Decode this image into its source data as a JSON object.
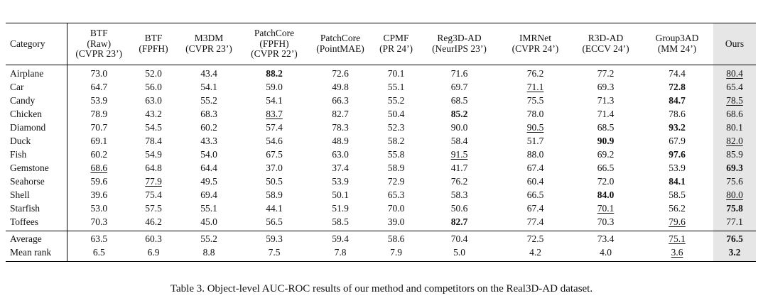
{
  "header": {
    "category": "Category",
    "columns": [
      {
        "lines": [
          "BTF",
          "(Raw)",
          "(CVPR 23’)"
        ]
      },
      {
        "lines": [
          "BTF",
          "(FPFH)"
        ]
      },
      {
        "lines": [
          "M3DM",
          "(CVPR 23’)"
        ]
      },
      {
        "lines": [
          "PatchCore",
          "(FPFH)",
          "(CVPR 22’)"
        ]
      },
      {
        "lines": [
          "PatchCore",
          "(PointMAE)"
        ]
      },
      {
        "lines": [
          "CPMF",
          "(PR 24’)"
        ]
      },
      {
        "lines": [
          "Reg3D-AD",
          "(NeurIPS 23’)"
        ]
      },
      {
        "lines": [
          "IMRNet",
          "(CVPR 24’)"
        ]
      },
      {
        "lines": [
          "R3D-AD",
          "(ECCV 24’)"
        ]
      },
      {
        "lines": [
          "Group3AD",
          "(MM 24’)"
        ]
      },
      {
        "lines": [
          "Ours"
        ]
      }
    ]
  },
  "rows": [
    {
      "category": "Airplane",
      "values": [
        "73.0",
        "52.0",
        "43.4",
        "88.2",
        "72.6",
        "70.1",
        "71.6",
        "76.2",
        "77.2",
        "74.4",
        "80.4"
      ],
      "bold": [
        3
      ],
      "underline": [
        10
      ]
    },
    {
      "category": "Car",
      "values": [
        "64.7",
        "56.0",
        "54.1",
        "59.0",
        "49.8",
        "55.1",
        "69.7",
        "71.1",
        "69.3",
        "72.8",
        "65.4"
      ],
      "bold": [
        9
      ],
      "underline": [
        7
      ]
    },
    {
      "category": "Candy",
      "values": [
        "53.9",
        "63.0",
        "55.2",
        "54.1",
        "66.3",
        "55.2",
        "68.5",
        "75.5",
        "71.3",
        "84.7",
        "78.5"
      ],
      "bold": [
        9
      ],
      "underline": [
        10
      ]
    },
    {
      "category": "Chicken",
      "values": [
        "78.9",
        "43.2",
        "68.3",
        "83.7",
        "82.7",
        "50.4",
        "85.2",
        "78.0",
        "71.4",
        "78.6",
        "68.6"
      ],
      "bold": [
        6
      ],
      "underline": [
        3
      ]
    },
    {
      "category": "Diamond",
      "values": [
        "70.7",
        "54.5",
        "60.2",
        "57.4",
        "78.3",
        "52.3",
        "90.0",
        "90.5",
        "68.5",
        "93.2",
        "80.1"
      ],
      "bold": [
        9
      ],
      "underline": [
        7
      ]
    },
    {
      "category": "Duck",
      "values": [
        "69.1",
        "78.4",
        "43.3",
        "54.6",
        "48.9",
        "58.2",
        "58.4",
        "51.7",
        "90.9",
        "67.9",
        "82.0"
      ],
      "bold": [
        8
      ],
      "underline": [
        10
      ]
    },
    {
      "category": "Fish",
      "values": [
        "60.2",
        "54.9",
        "54.0",
        "67.5",
        "63.0",
        "55.8",
        "91.5",
        "88.0",
        "69.2",
        "97.6",
        "85.9"
      ],
      "bold": [
        9
      ],
      "underline": [
        6
      ]
    },
    {
      "category": "Gemstone",
      "values": [
        "68.6",
        "64.8",
        "64.4",
        "37.0",
        "37.4",
        "58.9",
        "41.7",
        "67.4",
        "66.5",
        "53.9",
        "69.3"
      ],
      "bold": [
        10
      ],
      "underline": [
        0
      ]
    },
    {
      "category": "Seahorse",
      "values": [
        "59.6",
        "77.9",
        "49.5",
        "50.5",
        "53.9",
        "72.9",
        "76.2",
        "60.4",
        "72.0",
        "84.1",
        "75.6"
      ],
      "bold": [
        9
      ],
      "underline": [
        1
      ]
    },
    {
      "category": "Shell",
      "values": [
        "39.6",
        "75.4",
        "69.4",
        "58.9",
        "50.1",
        "65.3",
        "58.3",
        "66.5",
        "84.0",
        "58.5",
        "80.0"
      ],
      "bold": [
        8
      ],
      "underline": [
        10
      ]
    },
    {
      "category": "Starfish",
      "values": [
        "53.0",
        "57.5",
        "55.1",
        "44.1",
        "51.9",
        "70.0",
        "50.6",
        "67.4",
        "70.1",
        "56.2",
        "75.8"
      ],
      "bold": [
        10
      ],
      "underline": [
        8
      ]
    },
    {
      "category": "Toffees",
      "values": [
        "70.3",
        "46.2",
        "45.0",
        "56.5",
        "58.5",
        "39.0",
        "82.7",
        "77.4",
        "70.3",
        "79.6",
        "77.1"
      ],
      "bold": [
        6
      ],
      "underline": [
        9
      ]
    }
  ],
  "summary": [
    {
      "category": "Average",
      "values": [
        "63.5",
        "60.3",
        "55.2",
        "59.3",
        "59.4",
        "58.6",
        "70.4",
        "72.5",
        "73.4",
        "75.1",
        "76.5"
      ],
      "bold": [
        10
      ],
      "underline": [
        9
      ]
    },
    {
      "category": "Mean rank",
      "values": [
        "6.5",
        "6.9",
        "8.8",
        "7.5",
        "7.8",
        "7.9",
        "5.0",
        "4.2",
        "4.0",
        "3.6",
        "3.2"
      ],
      "bold": [
        10
      ],
      "underline": [
        9
      ]
    }
  ],
  "caption": "Table 3. Object-level AUC-ROC results of our method and competitors on the Real3D-AD dataset.",
  "colors": {
    "ours_highlight": "#e6e6e6",
    "rule": "#000000"
  }
}
